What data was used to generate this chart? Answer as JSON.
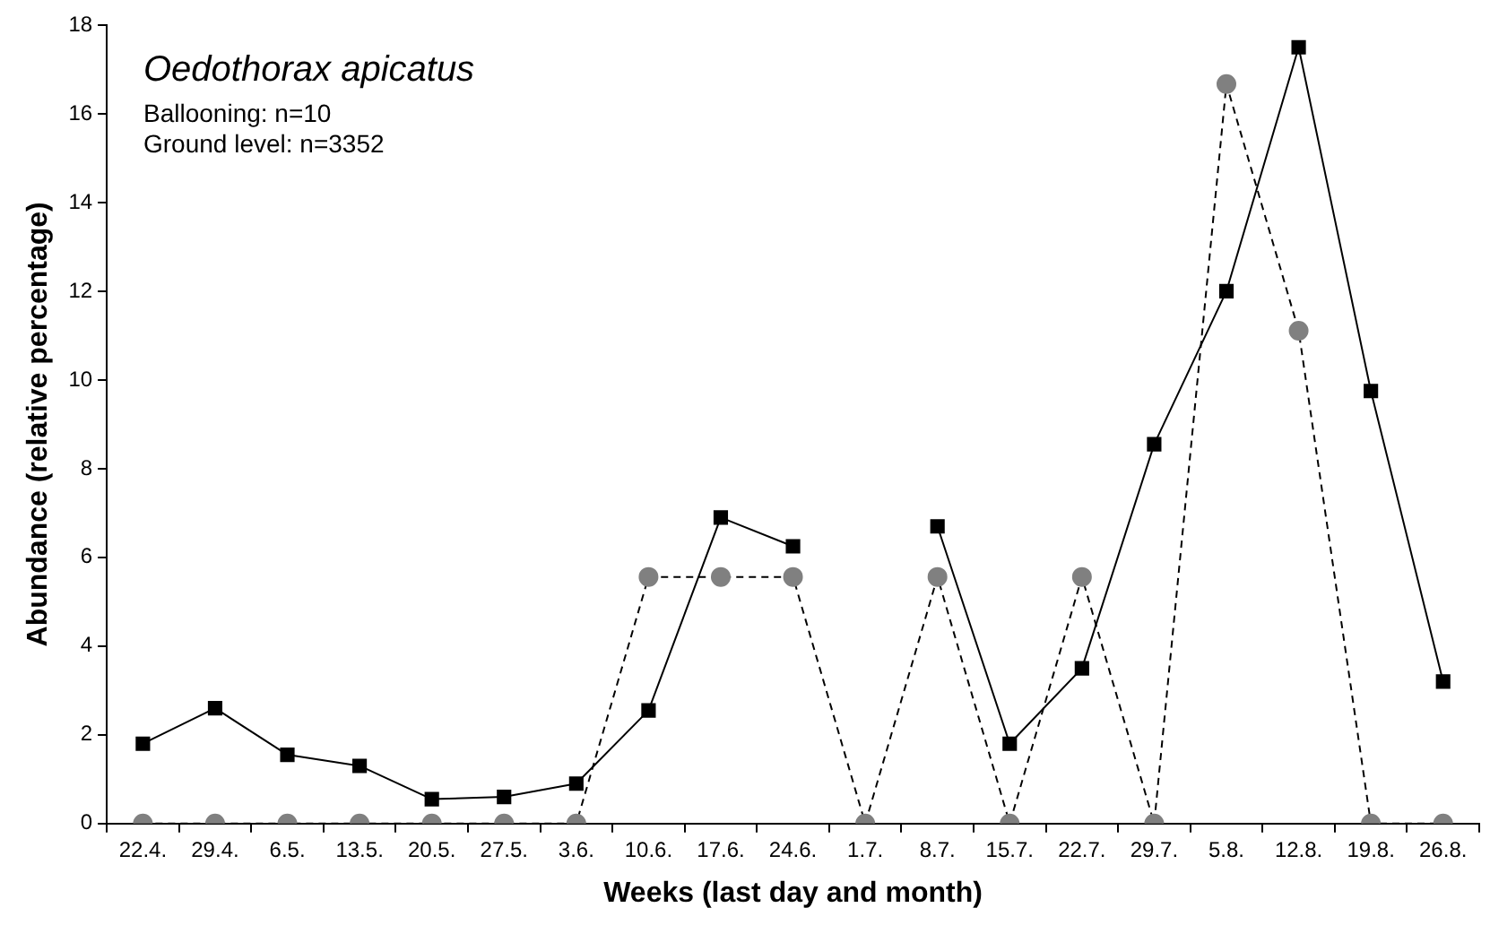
{
  "chart_data": {
    "type": "line",
    "title": "Oedothorax apicatus",
    "xlabel": "Weeks (last day and month)",
    "ylabel": "Abundance (relative percentage)",
    "annotations": [
      "Ballooning: n=10",
      "Ground level: n=3352"
    ],
    "categories": [
      "22.4.",
      "29.4.",
      "6.5.",
      "13.5.",
      "20.5.",
      "27.5.",
      "3.6.",
      "10.6.",
      "17.6.",
      "24.6.",
      "1.7.",
      "8.7.",
      "15.7.",
      "22.7.",
      "29.7.",
      "5.8.",
      "12.8.",
      "19.8.",
      "26.8."
    ],
    "series": [
      {
        "color": "#000000",
        "marker": "square",
        "line_style": "solid",
        "values": [
          1.8,
          2.6,
          1.55,
          1.3,
          0.55,
          0.6,
          0.9,
          2.55,
          6.9,
          6.25,
          null,
          6.7,
          1.8,
          3.5,
          8.55,
          12.0,
          17.5,
          9.75,
          3.2
        ]
      },
      {
        "color": "#808080",
        "marker": "circle",
        "line_style": "dashed",
        "values": [
          0,
          0,
          0,
          0,
          0,
          0,
          0,
          5.56,
          5.56,
          5.56,
          0,
          5.56,
          0,
          5.56,
          0,
          16.67,
          11.11,
          0,
          0
        ]
      }
    ],
    "ylim": [
      0,
      18
    ],
    "yticks": [
      0,
      2,
      4,
      6,
      8,
      10,
      12,
      14,
      16,
      18
    ],
    "grid": false,
    "legend": false
  }
}
